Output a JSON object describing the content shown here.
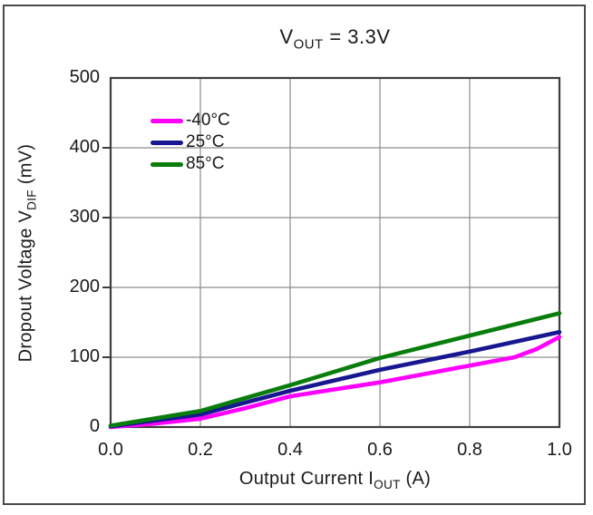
{
  "figure": {
    "title": {
      "pre": "V",
      "sub": "OUT",
      "post": " = 3.3V"
    },
    "x_axis": {
      "label": {
        "pre": "Output Current I",
        "sub": "OUT",
        "post": " (A)"
      },
      "tick_labels": [
        "0.0",
        "0.2",
        "0.4",
        "0.6",
        "0.8",
        "1.0"
      ]
    },
    "y_axis": {
      "label": {
        "pre": "Dropout Voltage V",
        "sub": "DIF",
        "post": " (mV)"
      },
      "tick_labels": [
        "500",
        "400",
        "300",
        "200",
        "100",
        "0"
      ]
    }
  },
  "theme": {
    "background": "#ffffff",
    "outer_border": "#4a4a4a",
    "frame": "#3d3d3d",
    "grid": "#8c8c8c",
    "text": "#1a1a1a"
  },
  "chart_data": {
    "type": "line",
    "title": "VOUT = 3.3V",
    "xlabel": "Output Current IOUT (A)",
    "ylabel": "Dropout Voltage VDIF (mV)",
    "xlim": [
      0,
      1.0
    ],
    "ylim": [
      0,
      500
    ],
    "xticks": [
      0,
      0.2,
      0.4,
      0.6,
      0.8,
      1.0
    ],
    "yticks": [
      0,
      100,
      200,
      300,
      400,
      500
    ],
    "grid": true,
    "legend_position": "upper-left-inside",
    "units": {
      "x": "A",
      "y": "mV"
    },
    "series": [
      {
        "name": "-40C",
        "label": "-40°C",
        "color": "#ff00ff",
        "x": [
          0,
          0.1,
          0.2,
          0.3,
          0.4,
          0.5,
          0.6,
          0.7,
          0.8,
          0.9,
          0.95,
          1.0
        ],
        "y": [
          0,
          5,
          12,
          27,
          44,
          54,
          64,
          76,
          88,
          100,
          112,
          129
        ]
      },
      {
        "name": "25C",
        "label": "25°C",
        "color": "#171791",
        "x": [
          0,
          0.2,
          0.4,
          0.6,
          0.8,
          1.0
        ],
        "y": [
          1,
          18,
          52,
          82,
          108,
          136
        ]
      },
      {
        "name": "85C",
        "label": "85°C",
        "color": "#087d0c",
        "x": [
          0,
          0.2,
          0.4,
          0.6,
          0.8,
          1.0
        ],
        "y": [
          2,
          23,
          60,
          99,
          131,
          163
        ]
      }
    ]
  }
}
